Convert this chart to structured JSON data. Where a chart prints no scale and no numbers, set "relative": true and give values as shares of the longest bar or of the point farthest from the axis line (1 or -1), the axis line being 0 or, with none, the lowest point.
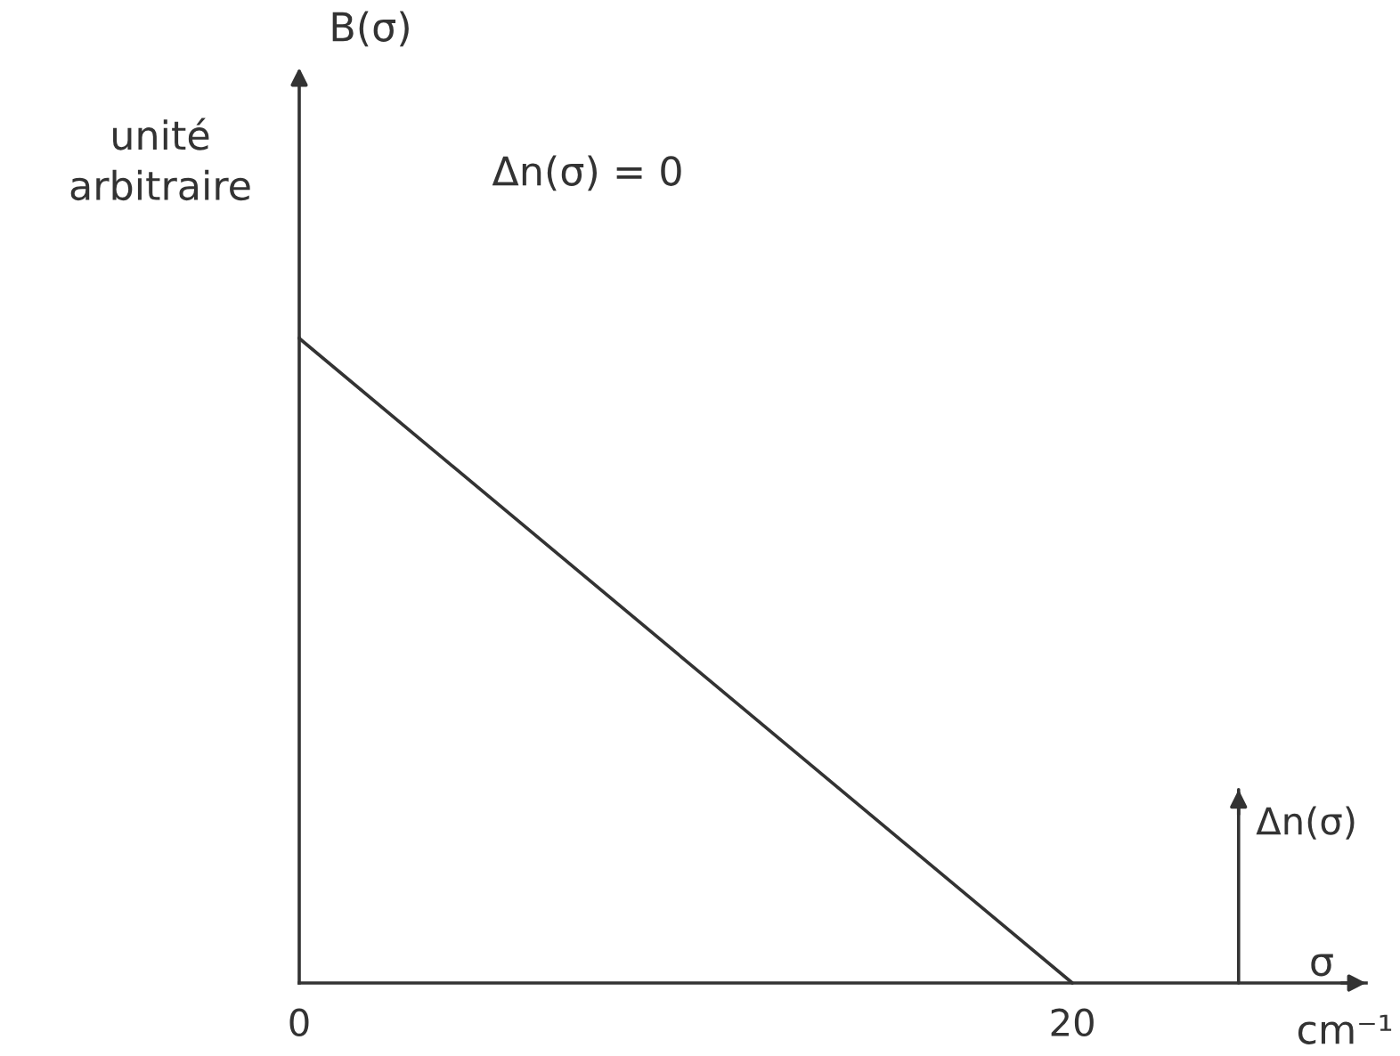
{
  "chart_data": {
    "type": "line",
    "relative": true,
    "xlabel": "σ",
    "series": [
      {
        "color": "#333333",
        "x": [
          0,
          20
        ],
        "values": [
          1,
          0
        ]
      },
      {
        "name": "Δn(σ)",
        "color": "#333333",
        "x": [
          24.3,
          24.3
        ],
        "values": [
          0,
          0.3
        ]
      }
    ],
    "xlim": [
      0,
      27.6
    ],
    "xticks": [
      0,
      20
    ],
    "tick_labels": "x",
    "annotations": [
      "B(σ)",
      "unité\narbitraire",
      "Δn(σ) = 0",
      "cm⁻¹"
    ]
  }
}
